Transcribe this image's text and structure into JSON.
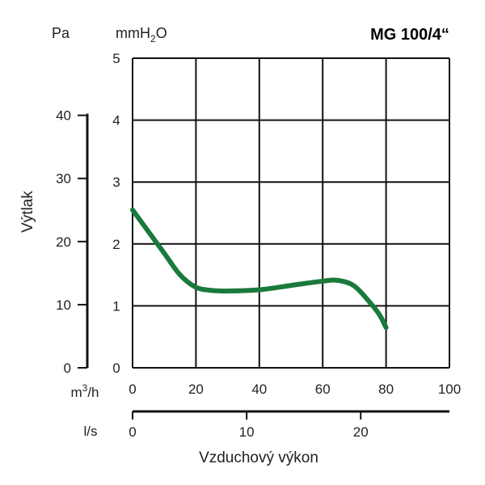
{
  "chart_data": {
    "type": "line",
    "title": "MG 100/4“",
    "ylabel": "Výtlak",
    "xlabel": "Vzduchový výkon",
    "y_axes": [
      {
        "unit": "Pa",
        "ticks": [
          0,
          10,
          20,
          30,
          40
        ]
      },
      {
        "unit": "mmH2O",
        "ticks": [
          0,
          1,
          2,
          3,
          4,
          5
        ],
        "ylim": [
          0,
          5
        ]
      }
    ],
    "x_axes": [
      {
        "unit": "m3/h",
        "ticks": [
          0,
          20,
          40,
          60,
          80,
          100
        ],
        "xlim": [
          0,
          100
        ]
      },
      {
        "unit": "l/s",
        "ticks": [
          0,
          10,
          20
        ]
      }
    ],
    "grid": true,
    "series": [
      {
        "color": "#1a7a3c",
        "x_unit": "m3/h",
        "y_unit": "mmH2O",
        "x": [
          0,
          5,
          10,
          15,
          20,
          25,
          30,
          40,
          50,
          60,
          65,
          70,
          75,
          78,
          80
        ],
        "y": [
          2.55,
          2.2,
          1.85,
          1.5,
          1.3,
          1.25,
          1.24,
          1.26,
          1.33,
          1.4,
          1.41,
          1.32,
          1.05,
          0.85,
          0.65
        ]
      }
    ]
  }
}
